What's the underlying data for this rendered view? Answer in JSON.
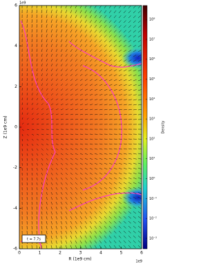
{
  "chart_data": {
    "type": "heatmap",
    "xlabel": "R (1e9 cm)",
    "ylabel": "Z (1e9 cm)",
    "x_offset_label": "1e9",
    "y_offset_label": "1e9",
    "xlim": [
      0,
      6
    ],
    "xticks": [
      0,
      1,
      2,
      3,
      4,
      5,
      6
    ],
    "ylim": [
      -6,
      6
    ],
    "yticks": [
      -6,
      -4,
      -2,
      0,
      2,
      4,
      6
    ],
    "colorbar_label": "Density",
    "color_log_scale": true,
    "clim": [
      0.0003,
      500000000
    ],
    "cticks": [
      {
        "value": 100000000,
        "label": "10⁸"
      },
      {
        "value": 10000000,
        "label": "10⁷"
      },
      {
        "value": 1000000,
        "label": "10⁶"
      },
      {
        "value": 100000,
        "label": "10⁵"
      },
      {
        "value": 10000,
        "label": "10⁴"
      },
      {
        "value": 1000,
        "label": "10³"
      },
      {
        "value": 100,
        "label": "10²"
      },
      {
        "value": 10,
        "label": "10¹"
      },
      {
        "value": 1,
        "label": "10⁰"
      },
      {
        "value": 0.1,
        "label": "10⁻¹"
      },
      {
        "value": 0.01,
        "label": "10⁻²"
      },
      {
        "value": 0.001,
        "label": "10⁻³"
      }
    ],
    "annotation": "t = 7.7s"
  }
}
